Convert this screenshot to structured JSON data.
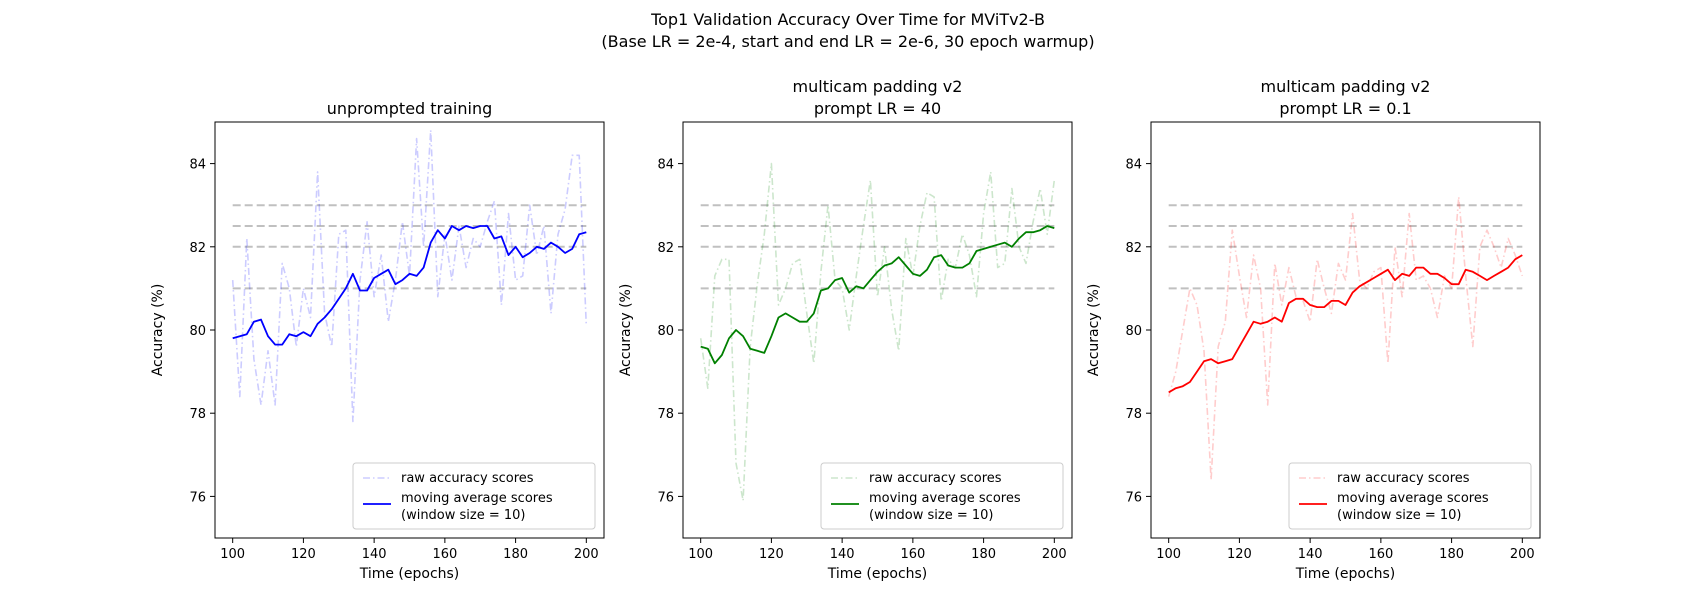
{
  "figure": {
    "title_line1": "Top1 Validation Accuracy Over Time for MViTv2-B",
    "title_line2": "(Base LR = 2e-4, start and end LR = 2e-6, 30 epoch warmup)"
  },
  "colors": {
    "blue": "#0000ff",
    "green": "#008000",
    "red": "#ff0000",
    "reference": "#c0c0c0"
  },
  "chart_data": [
    {
      "type": "line",
      "title": [
        "unprompted training"
      ],
      "xlabel": "Time (epochs)",
      "ylabel": "Accuracy (%)",
      "xlim": [
        95,
        205
      ],
      "ylim": [
        75,
        85
      ],
      "xticks": [
        100,
        120,
        140,
        160,
        180,
        200
      ],
      "yticks": [
        76,
        78,
        80,
        82,
        84
      ],
      "reference_lines": [
        81,
        82,
        82.5,
        83
      ],
      "legend_location": "lower right",
      "color": "#0000ff",
      "series": [
        {
          "name": "raw accuracy scores",
          "style": "dash-dot",
          "alpha": 0.2,
          "x": [
            100,
            102,
            104,
            106,
            108,
            110,
            112,
            114,
            116,
            118,
            120,
            122,
            124,
            126,
            128,
            130,
            132,
            134,
            136,
            138,
            140,
            142,
            144,
            146,
            148,
            150,
            152,
            154,
            156,
            158,
            160,
            162,
            164,
            166,
            168,
            170,
            172,
            174,
            176,
            178,
            180,
            182,
            184,
            186,
            188,
            190,
            192,
            194,
            196,
            198,
            200
          ],
          "values": [
            81.2,
            78.4,
            82.2,
            79.3,
            78.2,
            79.5,
            78.2,
            81.6,
            81.0,
            79.6,
            81.0,
            80.3,
            83.8,
            80.4,
            79.6,
            82.3,
            82.4,
            77.8,
            81.2,
            82.6,
            80.8,
            81.8,
            80.2,
            81.2,
            82.6,
            81.3,
            84.6,
            82.0,
            84.8,
            80.8,
            82.3,
            81.2,
            82.5,
            81.5,
            82.2,
            82.0,
            82.6,
            83.1,
            80.6,
            82.8,
            81.2,
            81.3,
            83.0,
            81.8,
            82.5,
            80.4,
            82.3,
            82.9,
            84.2,
            84.2,
            80.1
          ]
        },
        {
          "name": "moving average scores",
          "legend_line2": "(window size = 10)",
          "style": "solid",
          "alpha": 1,
          "x": [
            100,
            102,
            104,
            106,
            108,
            110,
            112,
            114,
            116,
            118,
            120,
            122,
            124,
            126,
            128,
            130,
            132,
            134,
            136,
            138,
            140,
            142,
            144,
            146,
            148,
            150,
            152,
            154,
            156,
            158,
            160,
            162,
            164,
            166,
            168,
            170,
            172,
            174,
            176,
            178,
            180,
            182,
            184,
            186,
            188,
            190,
            192,
            194,
            196,
            198,
            200
          ],
          "values": [
            79.8,
            79.85,
            79.9,
            80.2,
            80.25,
            79.85,
            79.65,
            79.65,
            79.9,
            79.85,
            79.95,
            79.85,
            80.15,
            80.3,
            80.5,
            80.75,
            81.0,
            81.35,
            80.95,
            80.95,
            81.25,
            81.35,
            81.45,
            81.1,
            81.2,
            81.35,
            81.3,
            81.5,
            82.1,
            82.4,
            82.2,
            82.5,
            82.4,
            82.5,
            82.45,
            82.5,
            82.5,
            82.2,
            82.25,
            81.8,
            82.0,
            81.75,
            81.85,
            82.0,
            81.95,
            82.1,
            82.0,
            81.85,
            81.95,
            82.3,
            82.35
          ]
        }
      ]
    },
    {
      "type": "line",
      "title": [
        "multicam padding v2",
        "prompt LR = 40"
      ],
      "xlabel": "Time (epochs)",
      "ylabel": "Accuracy (%)",
      "xlim": [
        95,
        205
      ],
      "ylim": [
        75,
        85
      ],
      "xticks": [
        100,
        120,
        140,
        160,
        180,
        200
      ],
      "yticks": [
        76,
        78,
        80,
        82,
        84
      ],
      "reference_lines": [
        81,
        82,
        82.5,
        83
      ],
      "legend_location": "lower right",
      "color": "#008000",
      "series": [
        {
          "name": "raw accuracy scores",
          "style": "dash-dot",
          "alpha": 0.2,
          "x": [
            100,
            102,
            104,
            106,
            108,
            110,
            112,
            114,
            116,
            118,
            120,
            122,
            124,
            126,
            128,
            130,
            132,
            134,
            136,
            138,
            140,
            142,
            144,
            146,
            148,
            150,
            152,
            154,
            156,
            158,
            160,
            162,
            164,
            166,
            168,
            170,
            172,
            174,
            176,
            178,
            180,
            182,
            184,
            186,
            188,
            190,
            192,
            194,
            196,
            198,
            200
          ],
          "values": [
            79.8,
            78.6,
            81.3,
            81.7,
            81.7,
            76.8,
            75.9,
            79.6,
            81.1,
            82.3,
            84.0,
            80.6,
            81.0,
            81.6,
            81.7,
            80.4,
            79.2,
            81.4,
            83.0,
            81.2,
            81.0,
            80.0,
            81.3,
            82.5,
            83.6,
            80.8,
            82.0,
            80.5,
            79.5,
            82.2,
            81.3,
            82.5,
            83.3,
            83.2,
            80.7,
            81.7,
            81.5,
            82.3,
            81.8,
            80.8,
            82.8,
            83.8,
            81.5,
            81.6,
            83.4,
            82.0,
            81.6,
            82.6,
            83.4,
            82.3,
            83.6
          ]
        },
        {
          "name": "moving average scores",
          "legend_line2": "(window size = 10)",
          "style": "solid",
          "alpha": 1,
          "x": [
            100,
            102,
            104,
            106,
            108,
            110,
            112,
            114,
            116,
            118,
            120,
            122,
            124,
            126,
            128,
            130,
            132,
            134,
            136,
            138,
            140,
            142,
            144,
            146,
            148,
            150,
            152,
            154,
            156,
            158,
            160,
            162,
            164,
            166,
            168,
            170,
            172,
            174,
            176,
            178,
            180,
            182,
            184,
            186,
            188,
            190,
            192,
            194,
            196,
            198,
            200
          ],
          "values": [
            79.6,
            79.55,
            79.2,
            79.4,
            79.8,
            80.0,
            79.85,
            79.55,
            79.5,
            79.45,
            79.85,
            80.3,
            80.4,
            80.3,
            80.2,
            80.2,
            80.4,
            80.95,
            81.0,
            81.2,
            81.25,
            80.9,
            81.05,
            81.0,
            81.2,
            81.4,
            81.55,
            81.6,
            81.75,
            81.55,
            81.35,
            81.3,
            81.45,
            81.75,
            81.8,
            81.55,
            81.5,
            81.5,
            81.6,
            81.9,
            81.95,
            82.0,
            82.05,
            82.1,
            82.0,
            82.2,
            82.35,
            82.35,
            82.4,
            82.5,
            82.45
          ]
        }
      ]
    },
    {
      "type": "line",
      "title": [
        "multicam padding v2",
        "prompt LR = 0.1"
      ],
      "xlabel": "Time (epochs)",
      "ylabel": "Accuracy (%)",
      "xlim": [
        95,
        205
      ],
      "ylim": [
        75,
        85
      ],
      "xticks": [
        100,
        120,
        140,
        160,
        180,
        200
      ],
      "yticks": [
        76,
        78,
        80,
        82,
        84
      ],
      "reference_lines": [
        81,
        82,
        82.5,
        83
      ],
      "legend_location": "lower right",
      "color": "#ff0000",
      "series": [
        {
          "name": "raw accuracy scores",
          "style": "dash-dot",
          "alpha": 0.2,
          "x": [
            100,
            102,
            104,
            106,
            108,
            110,
            112,
            114,
            116,
            118,
            120,
            122,
            124,
            126,
            128,
            130,
            132,
            134,
            136,
            138,
            140,
            142,
            144,
            146,
            148,
            150,
            152,
            154,
            156,
            158,
            160,
            162,
            164,
            166,
            168,
            170,
            172,
            174,
            176,
            178,
            180,
            182,
            184,
            186,
            188,
            190,
            192,
            194,
            196,
            198,
            200
          ],
          "values": [
            78.4,
            79.0,
            80.0,
            81.0,
            80.6,
            79.5,
            76.4,
            79.6,
            80.2,
            82.4,
            81.3,
            80.3,
            81.8,
            81.0,
            78.2,
            81.6,
            80.6,
            81.5,
            80.8,
            80.7,
            80.2,
            81.7,
            81.0,
            80.4,
            81.6,
            81.2,
            82.8,
            81.2,
            81.0,
            81.4,
            81.5,
            79.2,
            82.0,
            80.8,
            82.8,
            81.2,
            81.3,
            81.0,
            80.3,
            81.3,
            81.0,
            83.2,
            81.3,
            79.6,
            82.0,
            82.4,
            82.0,
            81.5,
            82.2,
            81.8,
            81.3
          ]
        },
        {
          "name": "moving average scores",
          "legend_line2": "(window size = 10)",
          "style": "solid",
          "alpha": 1,
          "x": [
            100,
            102,
            104,
            106,
            108,
            110,
            112,
            114,
            116,
            118,
            120,
            122,
            124,
            126,
            128,
            130,
            132,
            134,
            136,
            138,
            140,
            142,
            144,
            146,
            148,
            150,
            152,
            154,
            156,
            158,
            160,
            162,
            164,
            166,
            168,
            170,
            172,
            174,
            176,
            178,
            180,
            182,
            184,
            186,
            188,
            190,
            192,
            194,
            196,
            198,
            200
          ],
          "values": [
            78.5,
            78.6,
            78.65,
            78.75,
            79.0,
            79.25,
            79.3,
            79.2,
            79.25,
            79.3,
            79.6,
            79.9,
            80.2,
            80.15,
            80.2,
            80.3,
            80.2,
            80.65,
            80.75,
            80.75,
            80.6,
            80.55,
            80.55,
            80.7,
            80.7,
            80.6,
            80.9,
            81.05,
            81.15,
            81.25,
            81.35,
            81.45,
            81.2,
            81.35,
            81.3,
            81.5,
            81.5,
            81.35,
            81.35,
            81.25,
            81.1,
            81.1,
            81.45,
            81.4,
            81.3,
            81.2,
            81.3,
            81.4,
            81.5,
            81.7,
            81.8
          ]
        }
      ]
    }
  ]
}
